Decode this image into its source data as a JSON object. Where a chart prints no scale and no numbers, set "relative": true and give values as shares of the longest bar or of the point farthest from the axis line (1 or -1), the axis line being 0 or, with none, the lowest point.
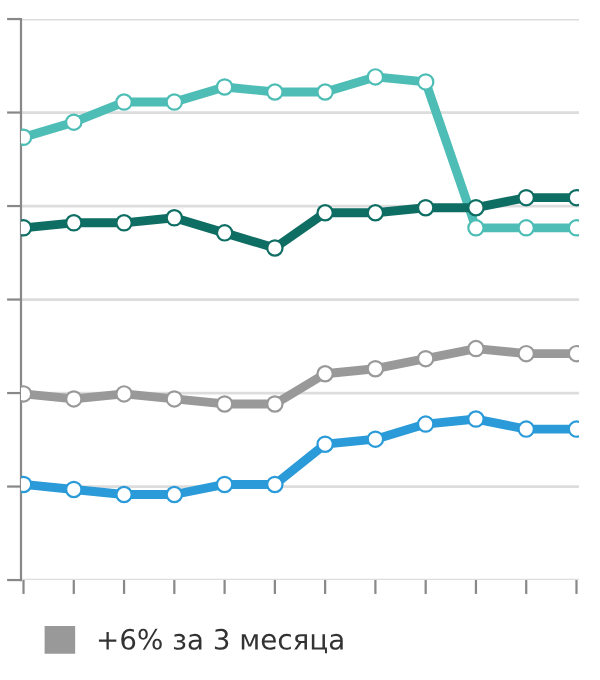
{
  "chart_data": {
    "type": "line",
    "relative": true,
    "categories": [
      null,
      null,
      null,
      null,
      null,
      null,
      null,
      null,
      null,
      null,
      null,
      null
    ],
    "series": [
      {
        "color": "#4dbdb5",
        "values": [
          0.88,
          0.91,
          0.95,
          0.95,
          0.98,
          0.97,
          0.97,
          1.0,
          0.99,
          0.7,
          0.7,
          0.7
        ]
      },
      {
        "color": "#0f6e63",
        "values": [
          0.7,
          0.71,
          0.71,
          0.72,
          0.69,
          0.66,
          0.73,
          0.73,
          0.74,
          0.74,
          0.76,
          0.76
        ]
      },
      {
        "name": "+6% за 3 месяца",
        "color": "#999999",
        "values": [
          0.37,
          0.36,
          0.37,
          0.36,
          0.35,
          0.35,
          0.41,
          0.42,
          0.44,
          0.46,
          0.45,
          0.45
        ]
      },
      {
        "color": "#2a9ad8",
        "values": [
          0.19,
          0.18,
          0.17,
          0.17,
          0.19,
          0.19,
          0.27,
          0.28,
          0.31,
          0.32,
          0.3,
          0.3
        ]
      }
    ],
    "marker": "circle",
    "grid": "y",
    "legend": "bottom"
  }
}
